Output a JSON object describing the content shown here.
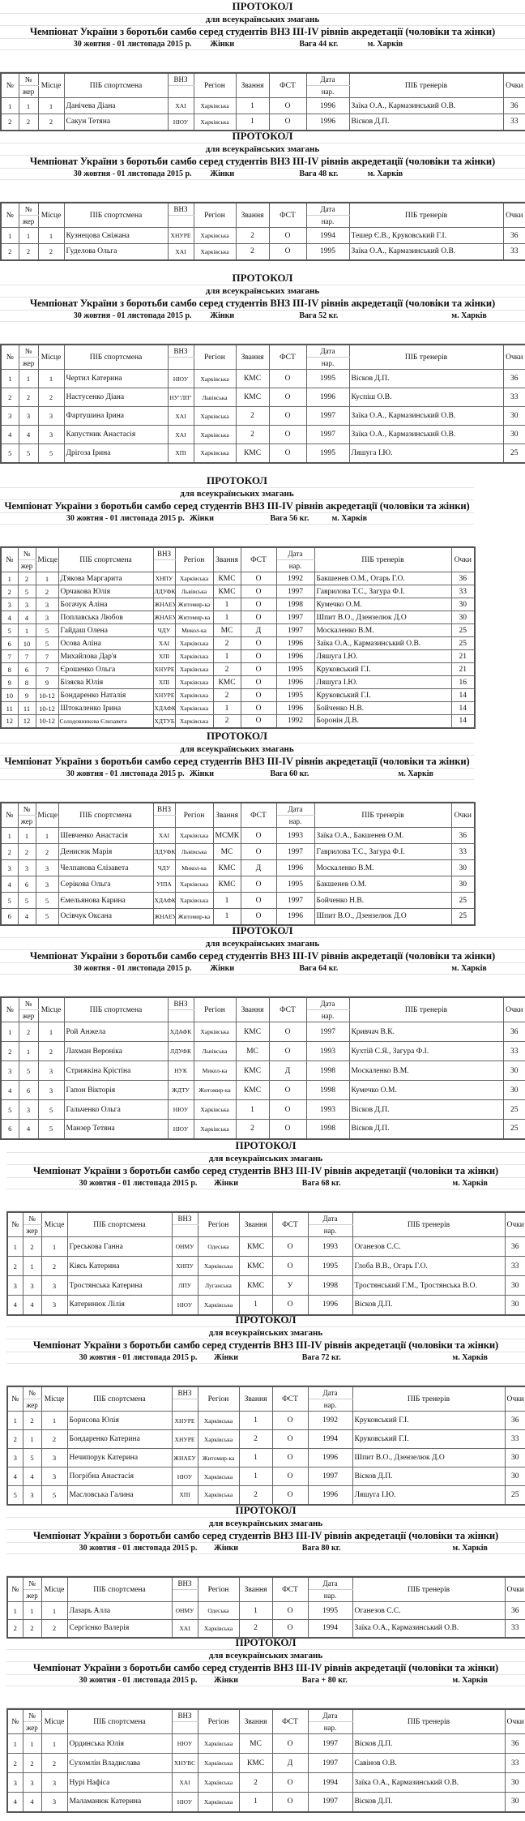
{
  "headers": {
    "num": "№",
    "jer_top": "№",
    "jer_bot": "жер",
    "place": "Місце",
    "name": "ПІБ спортсмена",
    "vnz": "ВНЗ",
    "region": "Регіон",
    "rank": "Звання",
    "fst": "ФСТ",
    "born_top": "Дата",
    "born_bot": "нар.",
    "coaches": "ПІБ тренерів",
    "points": "Очки"
  },
  "protocols": [
    {
      "title": "ПРОТОКОЛ",
      "subtitle": "для всеукраїнських змагань",
      "championship": "Чемпіонат України з боротьби самбо серед студентів ВНЗ ІІІ-IV рівнів акредетації (чоловіки та жінки)",
      "date": "30 жовтня - 01 листопада 2015 р.",
      "gender": "Жінки",
      "weight": "Вага  44  кг.",
      "city": "м. Харків",
      "rows": [
        [
          "1",
          "1",
          "1",
          "Данічева Діана",
          "ХАІ",
          "Харківська",
          "1",
          "О",
          "1996",
          "Заїка О.А., Кармазинський О.В.",
          "36"
        ],
        [
          "2",
          "2",
          "2",
          "Сакун Тетяна",
          "НЮУ",
          "Харківська",
          "1",
          "О",
          "1996",
          "Вісков Д.П.",
          "33"
        ]
      ]
    },
    {
      "title": "ПРОТОКОЛ",
      "subtitle": "для всеукраїнських змагань",
      "championship": "Чемпіонат України з боротьби самбо серед студентів ВНЗ ІІІ-IV рівнів акредетації (чоловіки та жінки)",
      "date": "30 жовтня - 01 листопада 2015 р.",
      "gender": "Жінки",
      "weight": "Вага  48  кг.",
      "city": "м. Харків",
      "rows": [
        [
          "1",
          "1",
          "1",
          "Кузнецова Сніжана",
          "ХНУРЕ",
          "Харківська",
          "2",
          "О",
          "1994",
          "Тешер Є.В., Круковський Г.І.",
          "36"
        ],
        [
          "2",
          "2",
          "2",
          "Гуделова Ольга",
          "ХАІ",
          "Харківська",
          "2",
          "О",
          "1995",
          "Заїка О.А., Кармазинський О.В.",
          "33"
        ]
      ]
    },
    {
      "title": "ПРОТОКОЛ",
      "subtitle": "для всеукраїнських змагань",
      "championship": "Чемпіонат України з боротьби самбо серед студентів ВНЗ ІІІ-IV рівнів акредетації (чоловіки та жінки)",
      "date": "30 жовтня - 01 листопада 2015 р.",
      "gender": "Жінки",
      "weight": "Вага  52 кг.",
      "city": "м. Харків",
      "rows": [
        [
          "1",
          "1",
          "1",
          "Чертил Катерина",
          "НЮУ",
          "Харківська",
          "КМС",
          "О",
          "1995",
          "Вісков Д.П.",
          "36"
        ],
        [
          "2",
          "2",
          "2",
          "Настусенко Діана",
          "НУ\"ЛП\"",
          "Львівська",
          "КМС",
          "О",
          "1996",
          "Куспіш О.В.",
          "33"
        ],
        [
          "3",
          "3",
          "3",
          "Фартушина Ірина",
          "ХАІ",
          "Харківська",
          "2",
          "О",
          "1997",
          "Заїка О.А., Кармазинський О.В.",
          "30"
        ],
        [
          "4",
          "4",
          "3",
          "Капустник Анастасія",
          "ХАІ",
          "Харківська",
          "2",
          "О",
          "1997",
          "Заїка О.А., Кармазинський О.В.",
          "30"
        ],
        [
          "5",
          "5",
          "5",
          "Дрігоза Ірина",
          "ХПІ",
          "Харківська",
          "КМС",
          "О",
          "1995",
          "Ляшуга І.Ю.",
          "25"
        ]
      ]
    },
    {
      "title": "ПРОТОКОЛ",
      "subtitle": "для всеукраїнських змагань",
      "championship": "Чемпіонат України з боротьби самбо серед студентів ВНЗ ІІІ-IV рівнів акредетації (чоловіки та жінки)",
      "date": "30 жовтня - 01 листопада 2015 р.",
      "gender": "Жінки",
      "weight": "Вага  56 кг.",
      "city": "м. Харків",
      "rows": [
        [
          "1",
          "2",
          "1",
          "Д'якова Маргарита",
          "ХНПУ",
          "Харківська",
          "КМС",
          "О",
          "1992",
          "Бакшенев О.М., Огарь Г.О.",
          "36"
        ],
        [
          "2",
          "5",
          "2",
          "Орчакова Юлія",
          "ЛДУФК",
          "Львівська",
          "КМС",
          "О",
          "1997",
          "Гаврилова Т.С., Загура Ф.І.",
          "33"
        ],
        [
          "3",
          "3",
          "3",
          "Богачук Аліна",
          "ЖНАЕУ",
          "Житомир-ка",
          "1",
          "О",
          "1998",
          "Кумечко О.М.",
          "30"
        ],
        [
          "4",
          "4",
          "3",
          "Поплавська Любов",
          "ЖНАЕУ",
          "Житомир-ка",
          "1",
          "О",
          "1997",
          "Шпит В.О., Дзензелюк Д.О",
          "30"
        ],
        [
          "5",
          "1",
          "5",
          "Гайдаш Олена",
          "ЧДУ",
          "Микол-ка",
          "МС",
          "Д",
          "1997",
          "Москаленко В.М.",
          "25"
        ],
        [
          "6",
          "10",
          "5",
          "Осова Аліна",
          "ХАІ",
          "Харківська",
          "2",
          "О",
          "1996",
          "Заїка О.А., Кармазинський О.В.",
          "25"
        ],
        [
          "7",
          "7",
          "7",
          "Михайлова Дар'я",
          "ХПІ",
          "Харківська",
          "1",
          "О",
          "1996",
          "Ляшуга І.Ю.",
          "21"
        ],
        [
          "8",
          "6",
          "7",
          "Єрошенко Ольга",
          "ХНУРЕ",
          "Харківська",
          "2",
          "О",
          "1995",
          "Круковський Г.І.",
          "21"
        ],
        [
          "9",
          "8",
          "9",
          "Бізяєва Юлія",
          "ХПІ",
          "Харківська",
          "КМС",
          "О",
          "1996",
          "Ляшуга І.Ю.",
          "16"
        ],
        [
          "10",
          "9",
          "10-12",
          "Бондаренко Наталія",
          "ХНУРЕ",
          "Харківська",
          "2",
          "О",
          "1995",
          "Круковський Г.І.",
          "14"
        ],
        [
          "11",
          "11",
          "10-12",
          "Штокаленко Ірина",
          "ХДАФК",
          "Харківська",
          "1",
          "О",
          "1996",
          "Бойченко Н.В.",
          "14"
        ],
        [
          "12",
          "12",
          "10-12",
          "Солодовникова Єлизавета",
          "ХДТУБА",
          "Харківська",
          "2",
          "О",
          "1992",
          "Боронін Д.В.",
          "14"
        ]
      ]
    },
    {
      "title": "ПРОТОКОЛ",
      "subtitle": "для всеукраїнських змагань",
      "championship": "Чемпіонат України з боротьби самбо серед студентів ВНЗ ІІІ-IV рівнів акредетації (чоловіки та жінки)",
      "date": "30 жовтня - 01 листопада 2015 р.",
      "gender": "Жінки",
      "weight": "Вага  60 кг.",
      "city": "м. Харків",
      "rows": [
        [
          "1",
          "1",
          "1",
          "Шевченко Анастасія",
          "ХАІ",
          "Харківська",
          "МСМК",
          "О",
          "1993",
          "Заїка О.А., Бакшенев О.М.",
          "36"
        ],
        [
          "2",
          "2",
          "2",
          "Денисюк Марія",
          "ЛДУФК",
          "Львівська",
          "МС",
          "О",
          "1997",
          "Гаврилова Т.С., Загура Ф.І.",
          "33"
        ],
        [
          "3",
          "3",
          "3",
          "Челпанова Єлізавета",
          "ЧДУ",
          "Микол-ка",
          "КМС",
          "Д",
          "1996",
          "Москаленко В.М.",
          "30"
        ],
        [
          "4",
          "6",
          "3",
          "Серікова Ольга",
          "УІПА",
          "Харківська",
          "КМС",
          "О",
          "1995",
          "Бакшенев О.М.",
          "30"
        ],
        [
          "5",
          "5",
          "5",
          "Ємельянова Карина",
          "ХДАФК",
          "Харківська",
          "1",
          "О",
          "1997",
          "Бойченко Н.В.",
          "25"
        ],
        [
          "6",
          "4",
          "5",
          "Осівчук Оксана",
          "ЖНАЕУ",
          "Житомир-ка",
          "1",
          "О",
          "1996",
          "Шпит В.О., Дзензелюк Д.О",
          "25"
        ]
      ]
    },
    {
      "title": "ПРОТОКОЛ",
      "subtitle": "для всеукраїнських змагань",
      "championship": "Чемпіонат України з боротьби самбо серед студентів ВНЗ ІІІ-IV рівнів акредетації (чоловіки та жінки)",
      "date": "30 жовтня - 01 листопада 2015 р.",
      "gender": "Жінки",
      "weight": "Вага  64 кг.",
      "city": "м. Харків",
      "rows": [
        [
          "1",
          "2",
          "1",
          "Рой Анжела",
          "ХДАФК",
          "Харківська",
          "КМС",
          "О",
          "1997",
          "Кривчач В.К.",
          "36"
        ],
        [
          "2",
          "1",
          "2",
          "Лахман Вероніка",
          "ЛДУФК",
          "Львівська",
          "МС",
          "О",
          "1993",
          "Кухтій С.Я., Загура Ф.І.",
          "33"
        ],
        [
          "3",
          "5",
          "3",
          "Стрижкіна Крістіна",
          "НУК",
          "Микол-ка",
          "КМС",
          "Д",
          "1998",
          "Москаленко В.М.",
          "30"
        ],
        [
          "4",
          "6",
          "3",
          "Гапон Вікторія",
          "ЖДТУ",
          "Житомир-ка",
          "КМС",
          "О",
          "1998",
          "Кумечко О.М.",
          "30"
        ],
        [
          "5",
          "3",
          "5",
          "Гальченко Ольга",
          "НЮУ",
          "Харківська",
          "1",
          "О",
          "1993",
          "Вісков Д.П.",
          "25"
        ],
        [
          "6",
          "4",
          "5",
          "Манзер Тетяна",
          "НЮУ",
          "Харківська",
          "2",
          "О",
          "1998",
          "Вісков Д.П.",
          "25"
        ]
      ]
    },
    {
      "title": "ПРОТОКОЛ",
      "subtitle": "для всеукраїнських змагань",
      "championship": "Чемпіонат України з боротьби самбо серед студентів ВНЗ ІІІ-IV рівнів акредетації (чоловіки та жінки)",
      "date": "30 жовтня - 01 листопада 2015 р.",
      "gender": "Жінки",
      "weight": "Вага  68 кг.",
      "city": "м. Харків",
      "rows": [
        [
          "1",
          "2",
          "1",
          "Греськова Ганна",
          "ОНМУ",
          "Одеська",
          "КМС",
          "О",
          "1993",
          "Оганезов С.С.",
          "36"
        ],
        [
          "2",
          "1",
          "2",
          "Кіясь Катерина",
          "ХНПУ",
          "Харківська",
          "КМС",
          "О",
          "1995",
          "Глоба В.В., Огарь Г.О.",
          "33"
        ],
        [
          "3",
          "3",
          "3",
          "Тростянська Катерина",
          "ЛПУ",
          "Луганська",
          "КМС",
          "У",
          "1998",
          "Тростянський Г.М., Тростянська В.О.",
          "30"
        ],
        [
          "4",
          "4",
          "3",
          "Катеринюк Лілія",
          "НЮУ",
          "Харківська",
          "1",
          "О",
          "1996",
          "Вісков Д.П.",
          "30"
        ]
      ]
    },
    {
      "title": "ПРОТОКОЛ",
      "subtitle": "для всеукраїнських змагань",
      "championship": "Чемпіонат України з боротьби самбо серед студентів ВНЗ ІІІ-IV рівнів акредетації (чоловіки та жінки)",
      "date": "30 жовтня - 01 листопада 2015 р.",
      "gender": "Жінки",
      "weight": "Вага  72 кг.",
      "city": "м. Харків",
      "rows": [
        [
          "1",
          "2",
          "1",
          "Борисова Юлія",
          "ХНУРЕ",
          "Харківська",
          "1",
          "О",
          "1992",
          "Круковський Г.І.",
          "36"
        ],
        [
          "2",
          "1",
          "2",
          "Бондаренко Катерина",
          "ХНУРЕ",
          "Харківська",
          "2",
          "О",
          "1994",
          "Круковський Г.І.",
          "33"
        ],
        [
          "3",
          "5",
          "3",
          "Нечипорук Катерина",
          "ЖНАЕУ",
          "Житомир-ка",
          "1",
          "О",
          "1996",
          "Шпит В.О., Дзензелюк Д.О",
          "30"
        ],
        [
          "4",
          "4",
          "3",
          "Погрібна Анастасія",
          "НЮУ",
          "Харківська",
          "1",
          "О",
          "1997",
          "Вісков Д.П.",
          "30"
        ],
        [
          "5",
          "3",
          "5",
          "Масловська Галина",
          "ХПІ",
          "Харківська",
          "2",
          "О",
          "1996",
          "Ляшуга І.Ю.",
          "25"
        ]
      ]
    },
    {
      "title": "ПРОТОКОЛ",
      "subtitle": "для всеукраїнських змагань",
      "championship": "Чемпіонат України з боротьби самбо серед студентів ВНЗ ІІІ-IV рівнів акредетації (чоловіки та жінки)",
      "date": "30 жовтня - 01 листопада 2015 р.",
      "gender": "Жінки",
      "weight": "Вага  80 кг.",
      "city": "м. Харків",
      "rows": [
        [
          "1",
          "1",
          "1",
          "Лазарь Алла",
          "ОНМУ",
          "Одеська",
          "1",
          "О",
          "1995",
          "Оганезов С.С.",
          "36"
        ],
        [
          "2",
          "2",
          "2",
          "Сергієнко Валерія",
          "ХАІ",
          "Харківська",
          "2",
          "О",
          "1994",
          "Заїка О.А., Кармазинський О.В.",
          "33"
        ]
      ]
    },
    {
      "title": "ПРОТОКОЛ",
      "subtitle": "для всеукраїнських змагань",
      "championship": "Чемпіонат України з боротьби самбо серед студентів ВНЗ ІІІ-IV рівнів акредетації (чоловіки та жінки)",
      "date": "30 жовтня - 01 листопада 2015 р.",
      "gender": "Жінки",
      "weight": "Вага  + 80 кг.",
      "city": "м. Харків",
      "rows": [
        [
          "1",
          "1",
          "1",
          "Ординська Юлія",
          "НЮУ",
          "Харківська",
          "МС",
          "О",
          "1997",
          "Вісков Д.П.",
          "36"
        ],
        [
          "2",
          "2",
          "2",
          "Сухомлін Владислава",
          "ХНУВС",
          "Харківська",
          "КМС",
          "Д",
          "1997",
          "Савінов О.В.",
          "33"
        ],
        [
          "3",
          "3",
          "3",
          "Нурі Нафіса",
          "ХАІ",
          "Харківська",
          "2",
          "О",
          "1994",
          "Заїка О.А., Кармазинський О.В.",
          "30"
        ],
        [
          "4",
          "4",
          "3",
          "Маламанюк Катерина",
          "НЮУ",
          "Харківська",
          "1",
          "О",
          "1997",
          "Вісков Д.П.",
          "30"
        ]
      ]
    }
  ]
}
